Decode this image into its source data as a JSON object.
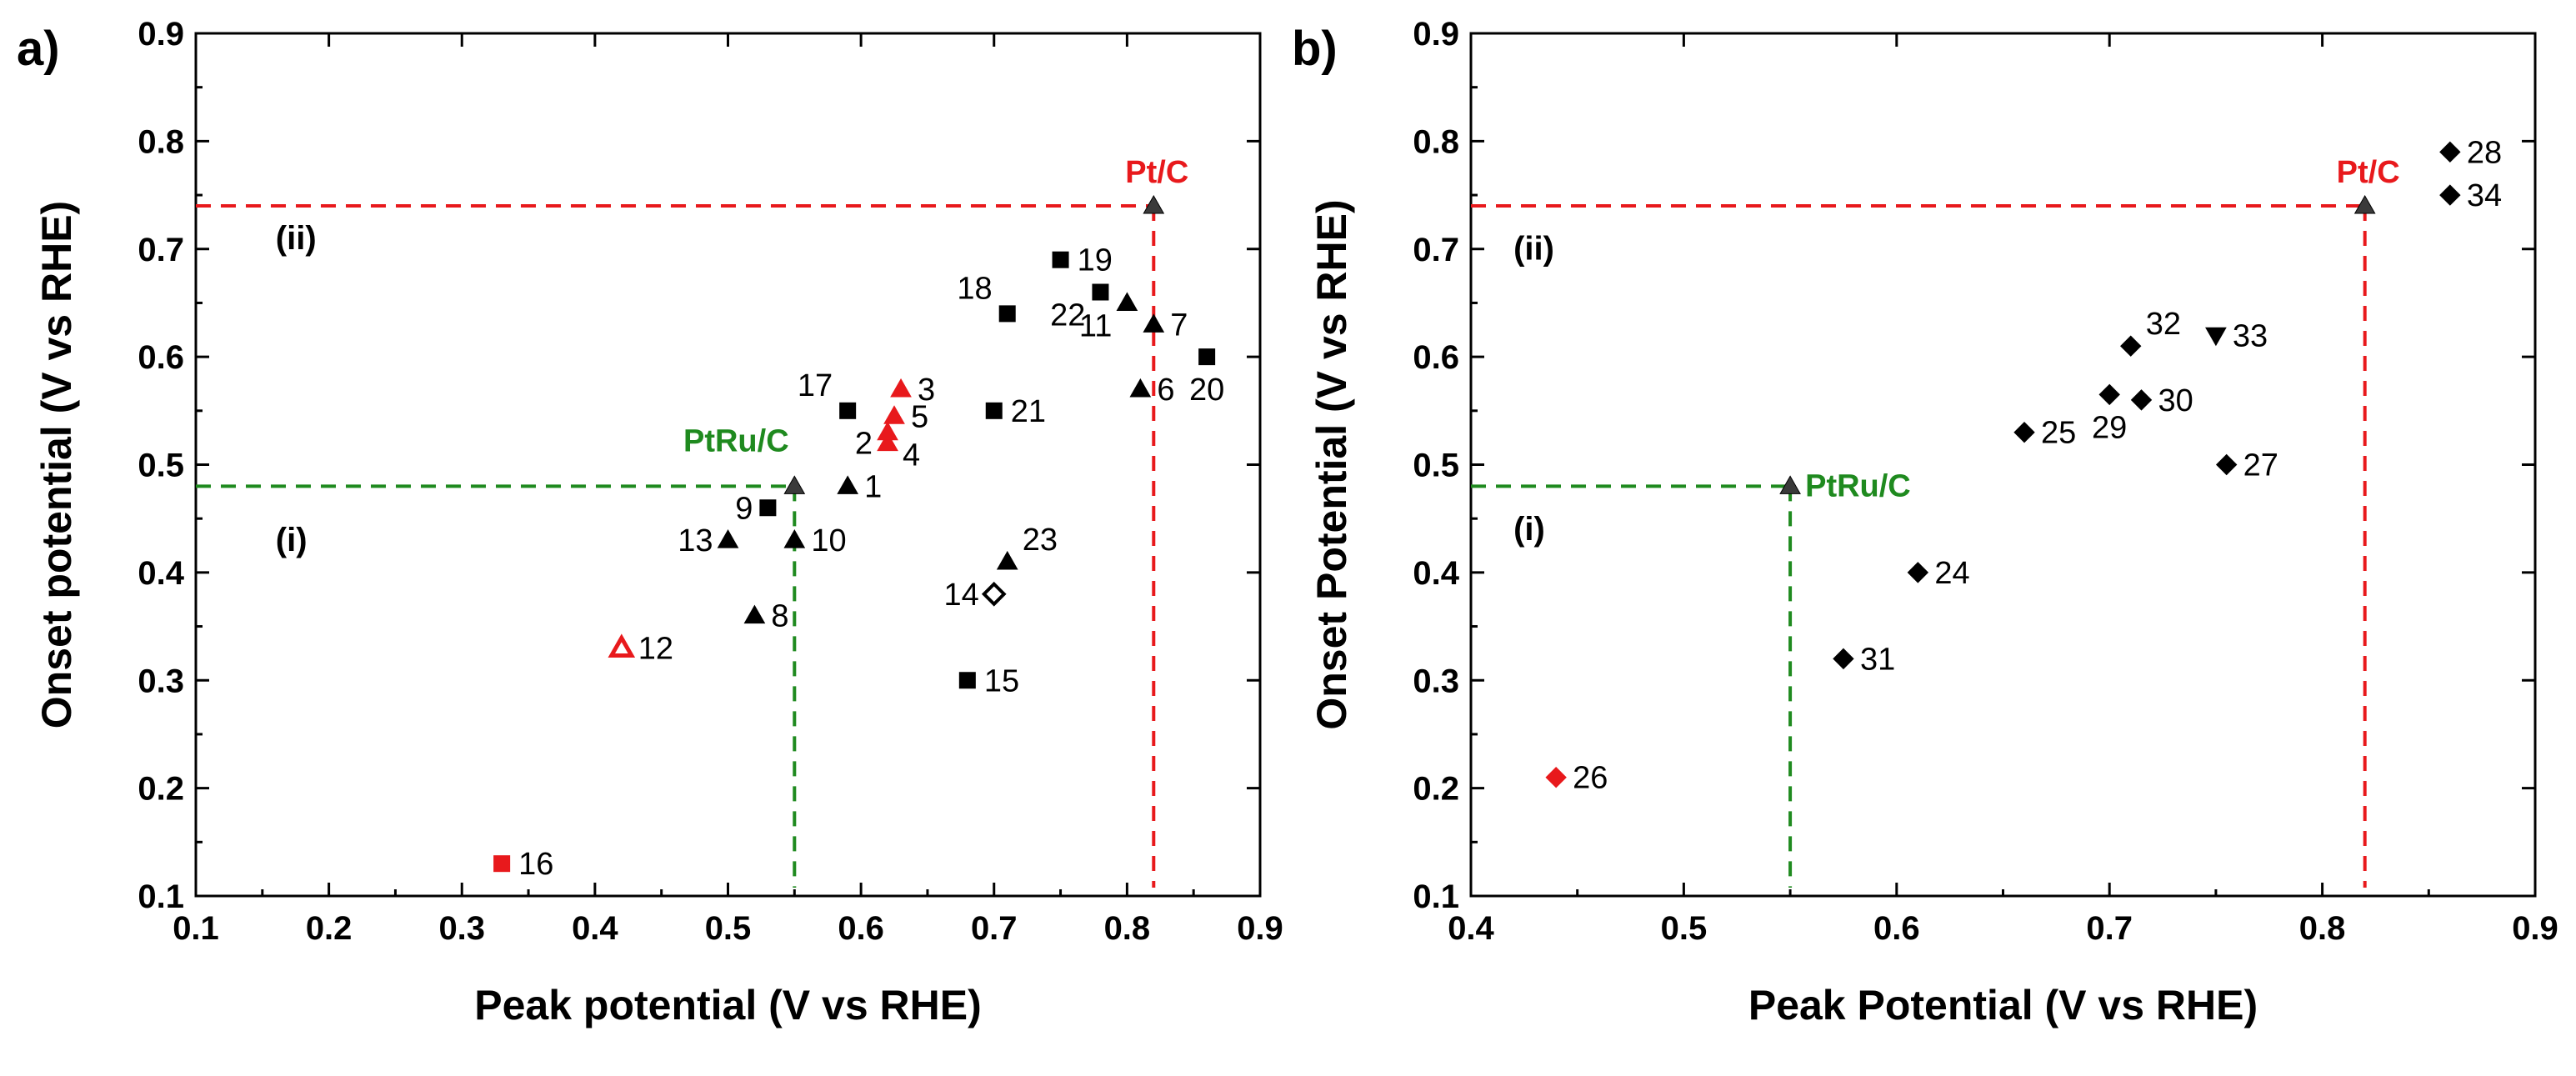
{
  "chart_data": [
    {
      "panel": "a)",
      "type": "scatter",
      "xlabel": "Peak potential (V vs RHE)",
      "ylabel": "Onset potential (V vs RHE)",
      "xlim": [
        0.1,
        0.9
      ],
      "ylim": [
        0.1,
        0.9
      ],
      "xticks": [
        "0.1",
        "0.2",
        "0.3",
        "0.4",
        "0.5",
        "0.6",
        "0.7",
        "0.8",
        "0.9"
      ],
      "yticks": [
        "0.1",
        "0.2",
        "0.3",
        "0.4",
        "0.5",
        "0.6",
        "0.7",
        "0.8",
        "0.9"
      ],
      "regions": [
        {
          "label": "(i)",
          "x": 0.16,
          "y": 0.42
        },
        {
          "label": "(ii)",
          "x": 0.16,
          "y": 0.7
        }
      ],
      "references": [
        {
          "name": "Pt/C",
          "x": 0.82,
          "y": 0.74,
          "color": "#e8191c"
        },
        {
          "name": "PtRu/C",
          "x": 0.55,
          "y": 0.48,
          "color": "#1f8a1f"
        }
      ],
      "points": [
        {
          "label": "1",
          "x": 0.59,
          "y": 0.48,
          "marker": "triangle",
          "color": "#000000",
          "filled": true,
          "pos": "right"
        },
        {
          "label": "2",
          "x": 0.62,
          "y": 0.52,
          "marker": "triangle",
          "color": "#e8191c",
          "filled": true,
          "pos": "left"
        },
        {
          "label": "3",
          "x": 0.63,
          "y": 0.57,
          "marker": "triangle",
          "color": "#e8191c",
          "filled": true,
          "pos": "right"
        },
        {
          "label": "4",
          "x": 0.62,
          "y": 0.53,
          "marker": "triangle",
          "color": "#e8191c",
          "filled": true,
          "pos": "right-down"
        },
        {
          "label": "5",
          "x": 0.625,
          "y": 0.545,
          "marker": "triangle",
          "color": "#e8191c",
          "filled": true,
          "pos": "right"
        },
        {
          "label": "6",
          "x": 0.81,
          "y": 0.57,
          "marker": "triangle",
          "color": "#000000",
          "filled": true,
          "pos": "right"
        },
        {
          "label": "7",
          "x": 0.82,
          "y": 0.63,
          "marker": "triangle",
          "color": "#000000",
          "filled": true,
          "pos": "right"
        },
        {
          "label": "8",
          "x": 0.52,
          "y": 0.36,
          "marker": "triangle",
          "color": "#000000",
          "filled": true,
          "pos": "right"
        },
        {
          "label": "9",
          "x": 0.53,
          "y": 0.46,
          "marker": "square",
          "color": "#000000",
          "filled": true,
          "pos": "left"
        },
        {
          "label": "10",
          "x": 0.55,
          "y": 0.43,
          "marker": "triangle",
          "color": "#000000",
          "filled": true,
          "pos": "right"
        },
        {
          "label": "11",
          "x": 0.8,
          "y": 0.65,
          "marker": "triangle",
          "color": "#000000",
          "filled": true,
          "pos": "left-down"
        },
        {
          "label": "12",
          "x": 0.42,
          "y": 0.33,
          "marker": "triangle",
          "color": "#e8191c",
          "filled": false,
          "pos": "right"
        },
        {
          "label": "13",
          "x": 0.5,
          "y": 0.43,
          "marker": "triangle",
          "color": "#000000",
          "filled": true,
          "pos": "left"
        },
        {
          "label": "14",
          "x": 0.7,
          "y": 0.38,
          "marker": "diamond",
          "color": "#000000",
          "filled": false,
          "pos": "left"
        },
        {
          "label": "15",
          "x": 0.68,
          "y": 0.3,
          "marker": "square",
          "color": "#000000",
          "filled": true,
          "pos": "right"
        },
        {
          "label": "16",
          "x": 0.33,
          "y": 0.13,
          "marker": "square",
          "color": "#e8191c",
          "filled": true,
          "pos": "right"
        },
        {
          "label": "17",
          "x": 0.59,
          "y": 0.55,
          "marker": "square",
          "color": "#000000",
          "filled": true,
          "pos": "left-up"
        },
        {
          "label": "18",
          "x": 0.71,
          "y": 0.64,
          "marker": "square",
          "color": "#000000",
          "filled": true,
          "pos": "left-up"
        },
        {
          "label": "19",
          "x": 0.75,
          "y": 0.69,
          "marker": "square",
          "color": "#000000",
          "filled": true,
          "pos": "right"
        },
        {
          "label": "20",
          "x": 0.86,
          "y": 0.6,
          "marker": "square",
          "color": "#000000",
          "filled": true,
          "pos": "down"
        },
        {
          "label": "21",
          "x": 0.7,
          "y": 0.55,
          "marker": "square",
          "color": "#000000",
          "filled": true,
          "pos": "right"
        },
        {
          "label": "22",
          "x": 0.78,
          "y": 0.66,
          "marker": "square",
          "color": "#000000",
          "filled": true,
          "pos": "left-down"
        },
        {
          "label": "23",
          "x": 0.71,
          "y": 0.41,
          "marker": "triangle",
          "color": "#000000",
          "filled": true,
          "pos": "right-up"
        }
      ]
    },
    {
      "panel": "b)",
      "type": "scatter",
      "xlabel": "Peak Potential (V vs RHE)",
      "ylabel": "Onset Potential (V vs RHE)",
      "xlim": [
        0.4,
        0.9
      ],
      "ylim": [
        0.1,
        0.9
      ],
      "xticks": [
        "0.4",
        "0.5",
        "0.6",
        "0.7",
        "0.8",
        "0.9"
      ],
      "yticks": [
        "0.1",
        "0.2",
        "0.3",
        "0.4",
        "0.5",
        "0.6",
        "0.7",
        "0.8",
        "0.9"
      ],
      "regions": [
        {
          "label": "(i)",
          "x": 0.42,
          "y": 0.43
        },
        {
          "label": "(ii)",
          "x": 0.42,
          "y": 0.69
        }
      ],
      "references": [
        {
          "name": "Pt/C",
          "x": 0.82,
          "y": 0.74,
          "color": "#e8191c"
        },
        {
          "name": "PtRu/C",
          "x": 0.55,
          "y": 0.48,
          "color": "#1f8a1f"
        }
      ],
      "points": [
        {
          "label": "24",
          "x": 0.61,
          "y": 0.4,
          "marker": "diamond",
          "color": "#000000",
          "filled": true,
          "pos": "right"
        },
        {
          "label": "25",
          "x": 0.66,
          "y": 0.53,
          "marker": "diamond",
          "color": "#000000",
          "filled": true,
          "pos": "right"
        },
        {
          "label": "26",
          "x": 0.44,
          "y": 0.21,
          "marker": "diamond",
          "color": "#e8191c",
          "filled": true,
          "pos": "right"
        },
        {
          "label": "27",
          "x": 0.755,
          "y": 0.5,
          "marker": "diamond",
          "color": "#000000",
          "filled": true,
          "pos": "right"
        },
        {
          "label": "28",
          "x": 0.86,
          "y": 0.79,
          "marker": "diamond",
          "color": "#000000",
          "filled": true,
          "pos": "right"
        },
        {
          "label": "29",
          "x": 0.7,
          "y": 0.565,
          "marker": "diamond",
          "color": "#000000",
          "filled": true,
          "pos": "down"
        },
        {
          "label": "30",
          "x": 0.715,
          "y": 0.56,
          "marker": "diamond",
          "color": "#000000",
          "filled": true,
          "pos": "right"
        },
        {
          "label": "31",
          "x": 0.575,
          "y": 0.32,
          "marker": "diamond",
          "color": "#000000",
          "filled": true,
          "pos": "right"
        },
        {
          "label": "32",
          "x": 0.71,
          "y": 0.61,
          "marker": "diamond",
          "color": "#000000",
          "filled": true,
          "pos": "right-up"
        },
        {
          "label": "33",
          "x": 0.75,
          "y": 0.62,
          "marker": "triangle-down",
          "color": "#000000",
          "filled": true,
          "pos": "right"
        },
        {
          "label": "34",
          "x": 0.86,
          "y": 0.75,
          "marker": "diamond",
          "color": "#000000",
          "filled": true,
          "pos": "right"
        }
      ]
    }
  ]
}
